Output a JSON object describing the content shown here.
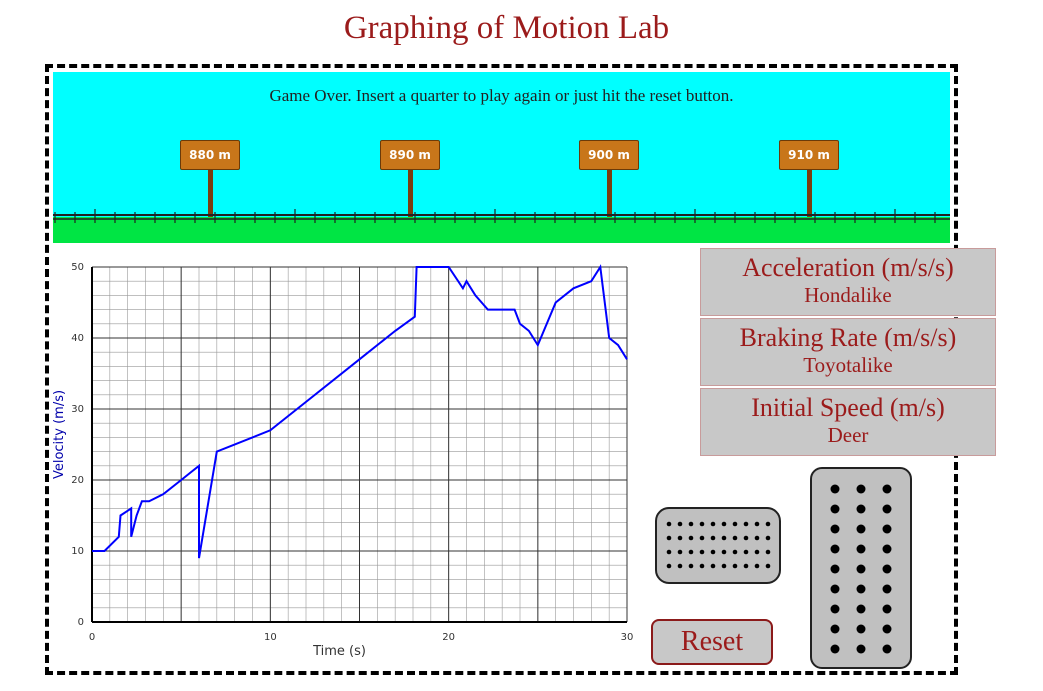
{
  "title": "Graphing of Motion Lab",
  "message": "Game Over. Insert a quarter to play again or just hit the reset button.",
  "signs": [
    "880 m",
    "890 m",
    "900 m",
    "910 m"
  ],
  "panels": [
    {
      "title": "Acceleration (m/s/s)",
      "value": "Hondalike"
    },
    {
      "title": "Braking Rate (m/s/s)",
      "value": "Toyotalike"
    },
    {
      "title": "Initial Speed (m/s)",
      "value": "Deer"
    }
  ],
  "reset_label": "Reset",
  "colors": {
    "sky": "#00ffff",
    "grass": "#00e544",
    "sign": "#c8761a",
    "title": "#9b1b1b",
    "trace": "#0000ff"
  },
  "icons": {
    "brake": "brake-pedal-icon",
    "gas": "gas-pedal-icon"
  },
  "chart_data": {
    "type": "line",
    "xlabel": "Time (s)",
    "ylabel": "Velocity (m/s)",
    "xlim": [
      0,
      30
    ],
    "ylim": [
      0,
      50
    ],
    "xticks": [
      "0",
      "10",
      "20",
      "30"
    ],
    "yticks": [
      "0",
      "10",
      "20",
      "30",
      "40",
      "50"
    ],
    "grid": true,
    "series": [
      {
        "x": [
          0,
          0.7,
          1.5,
          1.6,
          2.2,
          2.2,
          2.5,
          2.8,
          3.2,
          4.0,
          5.0,
          5.5,
          6.0,
          6.0,
          7.0,
          10.0,
          12.0,
          15.0,
          17.0,
          18.1,
          18.2,
          18.5,
          19.0,
          20.0,
          20.8,
          21.0,
          21.5,
          22.2,
          23.0,
          23.7,
          24.0,
          24.5,
          25.0,
          26.0,
          27.0,
          28.0,
          28.5,
          29.0,
          29.5,
          30.0
        ],
        "y": [
          10,
          10,
          12,
          15,
          16,
          12,
          15,
          17,
          17,
          18,
          20,
          21,
          22,
          9,
          24,
          27,
          31,
          37,
          41,
          43,
          50,
          50,
          50,
          50,
          47,
          48,
          46,
          44,
          44,
          44,
          42,
          41,
          39,
          45,
          47,
          48,
          50,
          40,
          39,
          37
        ]
      }
    ]
  }
}
